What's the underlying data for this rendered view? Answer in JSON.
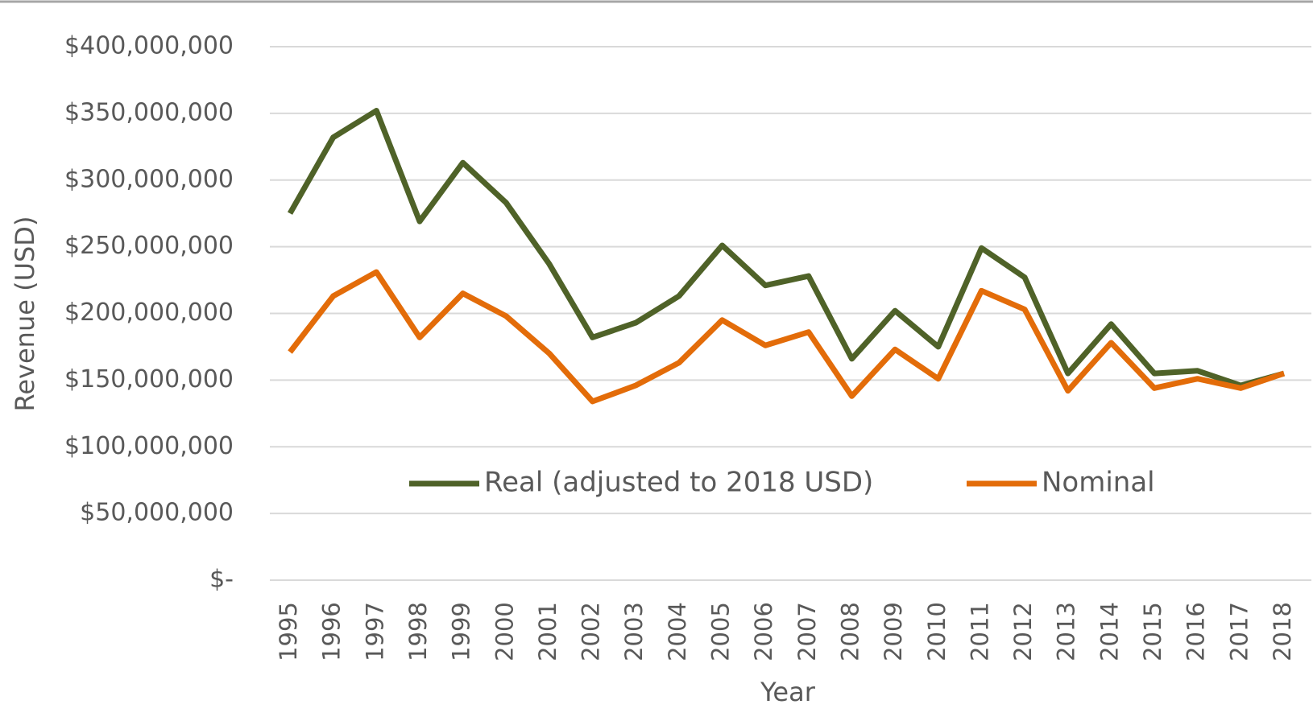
{
  "chart_data": {
    "type": "line",
    "x_label": "Year",
    "y_label": "Revenue (USD)",
    "categories": [
      "1995",
      "1996",
      "1997",
      "1998",
      "1999",
      "2000",
      "2001",
      "2002",
      "2003",
      "2004",
      "2005",
      "2006",
      "2007",
      "2008",
      "2009",
      "2010",
      "2011",
      "2012",
      "2013",
      "2014",
      "2015",
      "2016",
      "2017",
      "2018"
    ],
    "series": [
      {
        "name": "Real (adjusted to 2018 USD)",
        "color": "#4f6228",
        "values": [
          275000000,
          332000000,
          352000000,
          269000000,
          313000000,
          283000000,
          237000000,
          182000000,
          193000000,
          213000000,
          251000000,
          221000000,
          228000000,
          166000000,
          202000000,
          175000000,
          249000000,
          227000000,
          155000000,
          192000000,
          155000000,
          157000000,
          146000000,
          155000000
        ]
      },
      {
        "name": "Nominal",
        "color": "#e36c09",
        "values": [
          171000000,
          213000000,
          231000000,
          182000000,
          215000000,
          198000000,
          170000000,
          134000000,
          146000000,
          163000000,
          195000000,
          176000000,
          186000000,
          138000000,
          173000000,
          151000000,
          217000000,
          203000000,
          142000000,
          178000000,
          144000000,
          151000000,
          144000000,
          155000000
        ]
      }
    ],
    "ylim": [
      0,
      400000000
    ],
    "yticks": [
      {
        "value": 0,
        "label": "$-"
      },
      {
        "value": 50000000,
        "label": "$50,000,000"
      },
      {
        "value": 100000000,
        "label": "$100,000,000"
      },
      {
        "value": 150000000,
        "label": "$150,000,000"
      },
      {
        "value": 200000000,
        "label": "$200,000,000"
      },
      {
        "value": 250000000,
        "label": "$250,000,000"
      },
      {
        "value": 300000000,
        "label": "$300,000,000"
      },
      {
        "value": 350000000,
        "label": "$350,000,000"
      },
      {
        "value": 400000000,
        "label": "$400,000,000"
      }
    ],
    "grid": true,
    "legend": "center"
  }
}
